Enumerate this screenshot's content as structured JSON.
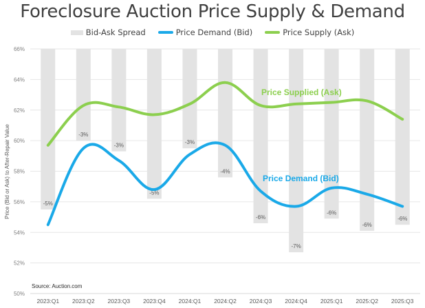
{
  "chart_data": {
    "type": "line",
    "title": "Foreclosure Auction Price Supply & Demand",
    "xlabel": "",
    "ylabel": "Price (Bid or Ask) to After-Repair Value",
    "ylim": [
      50,
      66
    ],
    "yticks": [
      "50%",
      "52%",
      "54%",
      "56%",
      "58%",
      "60%",
      "62%",
      "64%",
      "66%"
    ],
    "ytick_values": [
      50,
      52,
      54,
      56,
      58,
      60,
      62,
      64,
      66
    ],
    "grid": true,
    "legend_position": "top-center",
    "categories": [
      "2023:Q1",
      "2023:Q2",
      "2023:Q3",
      "2023:Q4",
      "2024:Q1",
      "2024:Q2",
      "2024:Q3",
      "2024:Q4",
      "2025:Q1",
      "2025:Q2",
      "2025:Q3"
    ],
    "series": [
      {
        "name": "Bid-Ask Spread",
        "kind": "bar",
        "color": "#e3e3e3",
        "values": [
          -5,
          -3,
          -3,
          -5,
          -3,
          -4,
          -6,
          -7,
          -6,
          -6,
          -6
        ],
        "labels": [
          "-5%",
          "-3%",
          "-3%",
          "-5%",
          "-3%",
          "-4%",
          "-6%",
          "-7%",
          "-6%",
          "-6%",
          "-6%"
        ],
        "bar_top": 66,
        "bar_bottom": [
          55.5,
          60.0,
          59.3,
          56.2,
          59.5,
          57.6,
          54.6,
          52.7,
          54.9,
          54.1,
          54.5
        ]
      },
      {
        "name": "Price Demand (Bid)",
        "kind": "line",
        "color": "#1aa9e8",
        "values": [
          54.5,
          59.5,
          58.7,
          56.8,
          59.1,
          59.7,
          56.7,
          55.7,
          56.9,
          56.5,
          55.7
        ],
        "annotation": "Price Demand (Bid)"
      },
      {
        "name": "Price Supply (Ask)",
        "kind": "line",
        "color": "#8ccf4e",
        "values": [
          59.7,
          62.3,
          62.2,
          61.7,
          62.4,
          63.8,
          62.3,
          62.4,
          62.5,
          62.6,
          61.4
        ],
        "annotation": "Price Supplied (Ask)"
      }
    ],
    "source": "Source: Auction.com"
  },
  "legend": {
    "items": [
      {
        "label": "Bid-Ask Spread",
        "color": "#e3e3e3"
      },
      {
        "label": "Price Demand (Bid)",
        "color": "#1aa9e8"
      },
      {
        "label": "Price Supply (Ask)",
        "color": "#8ccf4e"
      }
    ]
  }
}
